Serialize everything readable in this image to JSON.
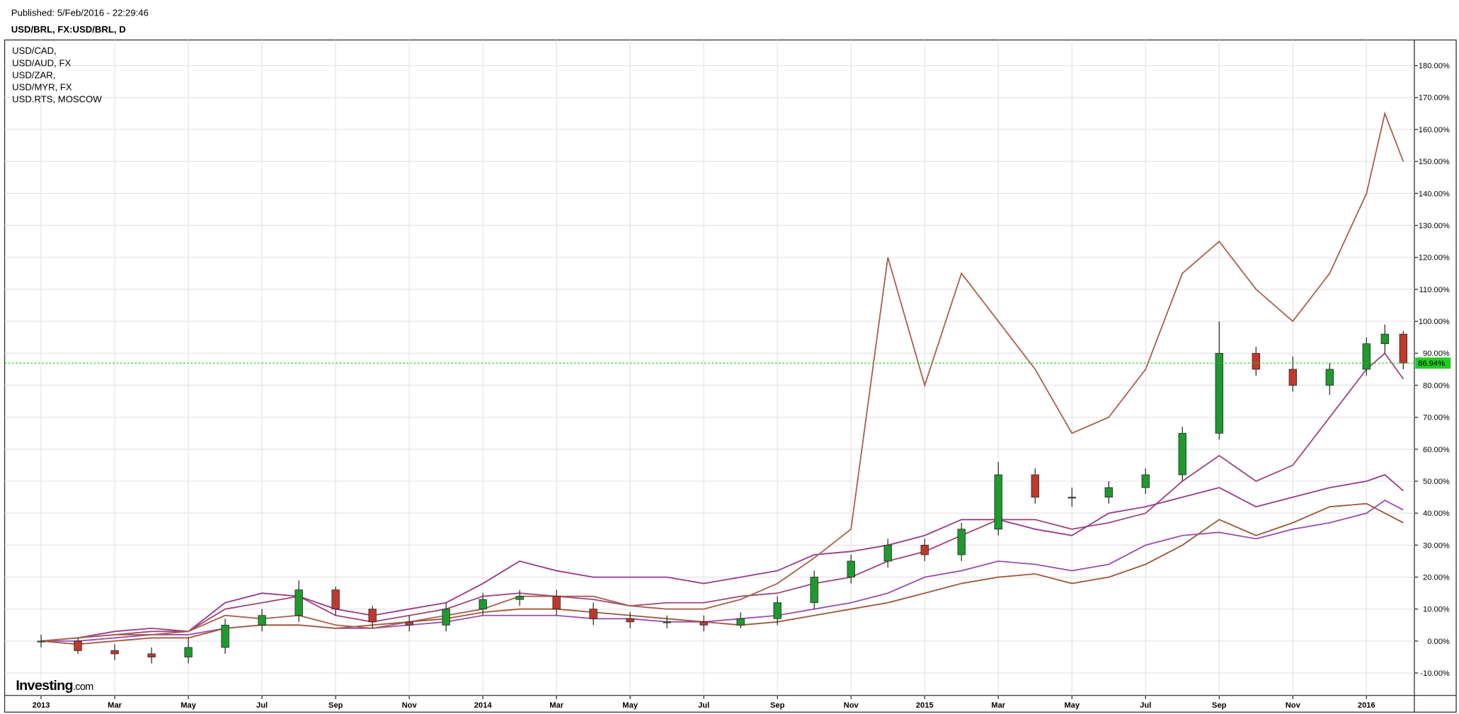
{
  "chart_data": {
    "type": "candlestick",
    "published": "Published: 5/Feb/2016 - 22:29:46",
    "title": "USD/BRL, FX:USD/BRL, D",
    "logo": {
      "name": "Investing",
      "suffix": ".com"
    },
    "xlim": [
      -0.99,
      37.3
    ],
    "xticks": [
      {
        "value": 0,
        "label": "2013"
      },
      {
        "value": 2,
        "label": "Mar"
      },
      {
        "value": 4,
        "label": "May"
      },
      {
        "value": 6,
        "label": "Jul"
      },
      {
        "value": 8,
        "label": "Sep"
      },
      {
        "value": 10,
        "label": "Nov"
      },
      {
        "value": 12,
        "label": "2014"
      },
      {
        "value": 14,
        "label": "Mar"
      },
      {
        "value": 16,
        "label": "May"
      },
      {
        "value": 18,
        "label": "Jul"
      },
      {
        "value": 20,
        "label": "Sep"
      },
      {
        "value": 22,
        "label": "Nov"
      },
      {
        "value": 24,
        "label": "2015"
      },
      {
        "value": 26,
        "label": "Mar"
      },
      {
        "value": 28,
        "label": "May"
      },
      {
        "value": 30,
        "label": "Jul"
      },
      {
        "value": 32,
        "label": "Sep"
      },
      {
        "value": 34,
        "label": "Nov"
      },
      {
        "value": 36,
        "label": "2016"
      }
    ],
    "ylim": [
      -17,
      188
    ],
    "yticks": [
      {
        "value": -10,
        "label": "-10.00%"
      },
      {
        "value": 0,
        "label": "0.00%"
      },
      {
        "value": 10,
        "label": "10.00%"
      },
      {
        "value": 20,
        "label": "20.00%"
      },
      {
        "value": 30,
        "label": "30.00%"
      },
      {
        "value": 40,
        "label": "40.00%"
      },
      {
        "value": 50,
        "label": "50.00%"
      },
      {
        "value": 60,
        "label": "60.00%"
      },
      {
        "value": 70,
        "label": "70.00%"
      },
      {
        "value": 80,
        "label": "80.00%"
      },
      {
        "value": 90,
        "label": "90.00%"
      },
      {
        "value": 100,
        "label": "100.00%"
      },
      {
        "value": 110,
        "label": "110.00%"
      },
      {
        "value": 120,
        "label": "120.00%"
      },
      {
        "value": 130,
        "label": "130.00%"
      },
      {
        "value": 140,
        "label": "140.00%"
      },
      {
        "value": 150,
        "label": "150.00%"
      },
      {
        "value": 160,
        "label": "160.00%"
      },
      {
        "value": 170,
        "label": "170.00%"
      },
      {
        "value": 180,
        "label": "180.00%"
      }
    ],
    "grid": true,
    "x": [
      0,
      1,
      2,
      3,
      4,
      5,
      6,
      7,
      8,
      9,
      10,
      11,
      12,
      13,
      14,
      15,
      16,
      17,
      18,
      19,
      20,
      21,
      22,
      23,
      24,
      25,
      26,
      27,
      28,
      29,
      30,
      31,
      32,
      33,
      34,
      35,
      36,
      36.5,
      37
    ],
    "candles": {
      "up_color": "#1e9a2e",
      "down_color": "#c0392b",
      "open": [
        0,
        0,
        -3,
        -4,
        -5,
        -2,
        5,
        8,
        16,
        10,
        6,
        5,
        10,
        13,
        14,
        10,
        7,
        6,
        6,
        5,
        7,
        12,
        20,
        25,
        30,
        27,
        35,
        52,
        45,
        45,
        48,
        52,
        65,
        90,
        85,
        80,
        85,
        93,
        96
      ],
      "high": [
        2,
        1,
        -1,
        -2,
        1,
        7,
        10,
        19,
        17,
        11,
        8,
        12,
        15,
        16,
        16,
        12,
        9,
        8,
        8,
        9,
        14,
        22,
        27,
        32,
        32,
        37,
        56,
        54,
        48,
        50,
        54,
        67,
        100,
        92,
        89,
        87,
        95,
        99,
        97
      ],
      "low": [
        -2,
        -4,
        -6,
        -7,
        -7,
        -4,
        3,
        6,
        8,
        4,
        3,
        3,
        8,
        11,
        8,
        5,
        4,
        4,
        3,
        4,
        5,
        10,
        18,
        23,
        25,
        25,
        33,
        43,
        42,
        43,
        46,
        50,
        63,
        83,
        78,
        77,
        83,
        90,
        85
      ],
      "close": [
        0,
        -3,
        -4,
        -5,
        -2,
        5,
        8,
        16,
        10,
        6,
        5,
        10,
        13,
        14,
        10,
        7,
        6,
        6,
        5,
        7,
        12,
        20,
        25,
        30,
        27,
        35,
        52,
        45,
        45,
        48,
        52,
        65,
        90,
        85,
        80,
        85,
        93,
        96,
        86.94
      ],
      "last_label": "86.94%",
      "last_color": "#22cc22"
    },
    "series": [
      {
        "name": "USD/CAD,",
        "color": "#9b4fb0",
        "values": [
          0,
          0,
          1,
          2,
          2,
          4,
          5,
          5,
          4,
          4,
          5,
          6,
          8,
          8,
          8,
          7,
          7,
          6,
          6,
          7,
          8,
          10,
          12,
          15,
          20,
          22,
          25,
          24,
          22,
          24,
          30,
          33,
          34,
          32,
          35,
          37,
          40,
          44,
          41
        ]
      },
      {
        "name": "USD/AUD, FX",
        "color": "#a0583a",
        "values": [
          0,
          -1,
          0,
          1,
          1,
          4,
          5,
          5,
          4,
          5,
          6,
          7,
          9,
          10,
          10,
          9,
          8,
          7,
          6,
          5,
          6,
          8,
          10,
          12,
          15,
          18,
          20,
          21,
          18,
          20,
          24,
          30,
          38,
          33,
          37,
          42,
          43,
          40,
          37
        ]
      },
      {
        "name": "USD/ZAR,",
        "color": "#a0487a",
        "values": [
          0,
          1,
          2,
          3,
          3,
          10,
          12,
          14,
          8,
          6,
          8,
          10,
          14,
          15,
          14,
          13,
          11,
          12,
          12,
          14,
          15,
          18,
          20,
          25,
          28,
          33,
          38,
          38,
          35,
          37,
          40,
          50,
          58,
          50,
          55,
          70,
          85,
          90,
          82
        ]
      },
      {
        "name": "USD/MYR, FX",
        "color": "#9a3a8a",
        "values": [
          0,
          1,
          3,
          4,
          3,
          12,
          15,
          14,
          10,
          8,
          10,
          12,
          18,
          25,
          22,
          20,
          20,
          20,
          18,
          20,
          22,
          27,
          28,
          30,
          33,
          38,
          38,
          35,
          33,
          40,
          42,
          45,
          48,
          42,
          45,
          48,
          50,
          52,
          47
        ]
      },
      {
        "name": "USD.RTS, MOSCOW",
        "color": "#a8624e",
        "values": [
          0,
          1,
          2,
          2,
          3,
          8,
          7,
          8,
          5,
          4,
          6,
          8,
          10,
          14,
          14,
          14,
          11,
          10,
          10,
          13,
          18,
          26,
          35,
          120,
          80,
          115,
          100,
          85,
          65,
          70,
          85,
          115,
          125,
          110,
          100,
          115,
          140,
          165,
          150
        ]
      }
    ]
  }
}
